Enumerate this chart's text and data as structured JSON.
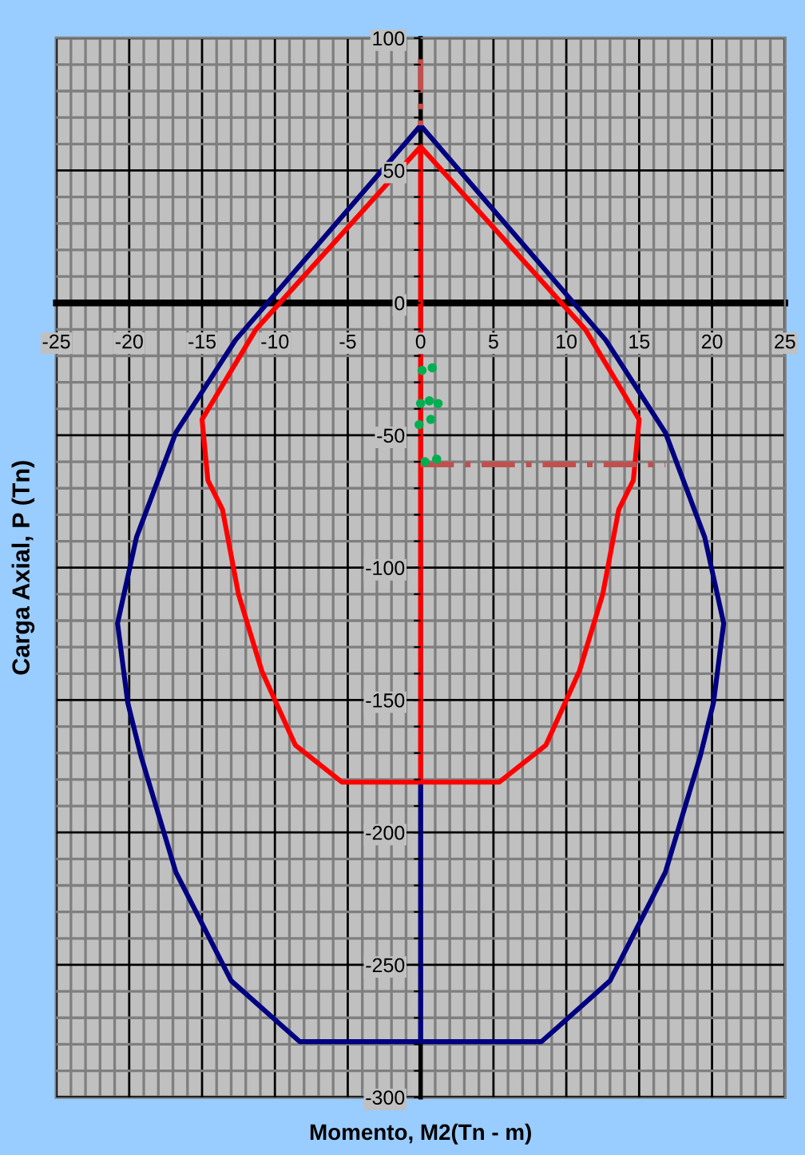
{
  "chart_data": {
    "type": "line",
    "xlabel": "Momento, M2(Tn - m)",
    "ylabel": "Carga Axial, P (Tn)",
    "xlim": [
      -25,
      25
    ],
    "ylim": [
      -300,
      100
    ],
    "xticks": [
      -25,
      {
        "value": -24,
        "label": null
      },
      {
        "value": -23,
        "label": null
      },
      {
        "value": -22,
        "label": null
      },
      {
        "value": -21,
        "label": null
      },
      -20,
      {
        "value": -19,
        "label": null
      },
      {
        "value": -18,
        "label": null
      },
      {
        "value": -17,
        "label": null
      },
      {
        "value": -16,
        "label": null
      },
      -15,
      {
        "value": -14,
        "label": null
      },
      {
        "value": -13,
        "label": null
      },
      {
        "value": -12,
        "label": null
      },
      {
        "value": -11,
        "label": null
      },
      -10,
      {
        "value": -9,
        "label": null
      },
      {
        "value": -8,
        "label": null
      },
      {
        "value": -7,
        "label": null
      },
      {
        "value": -6,
        "label": null
      },
      -5,
      {
        "value": -4,
        "label": null
      },
      {
        "value": -3,
        "label": null
      },
      {
        "value": -2,
        "label": null
      },
      {
        "value": -1,
        "label": null
      },
      0,
      {
        "value": 1,
        "label": null
      },
      {
        "value": 2,
        "label": null
      },
      {
        "value": 3,
        "label": null
      },
      {
        "value": 4,
        "label": null
      },
      5,
      {
        "value": 6,
        "label": null
      },
      {
        "value": 7,
        "label": null
      },
      {
        "value": 8,
        "label": null
      },
      {
        "value": 9,
        "label": null
      },
      10,
      {
        "value": 11,
        "label": null
      },
      {
        "value": 12,
        "label": null
      },
      {
        "value": 13,
        "label": null
      },
      {
        "value": 14,
        "label": null
      },
      15,
      {
        "value": 16,
        "label": null
      },
      {
        "value": 17,
        "label": null
      },
      {
        "value": 18,
        "label": null
      },
      {
        "value": 19,
        "label": null
      },
      20,
      {
        "value": 21,
        "label": null
      },
      {
        "value": 22,
        "label": null
      },
      {
        "value": 23,
        "label": null
      },
      {
        "value": 24,
        "label": null
      },
      25
    ],
    "yticks": [
      -300,
      {
        "value": -290,
        "label": null
      },
      {
        "value": -280,
        "label": null
      },
      {
        "value": -270,
        "label": null
      },
      {
        "value": -260,
        "label": null
      },
      -250,
      {
        "value": -240,
        "label": null
      },
      {
        "value": -230,
        "label": null
      },
      {
        "value": -220,
        "label": null
      },
      {
        "value": -210,
        "label": null
      },
      -200,
      {
        "value": -190,
        "label": null
      },
      {
        "value": -180,
        "label": null
      },
      {
        "value": -170,
        "label": null
      },
      {
        "value": -160,
        "label": null
      },
      -150,
      {
        "value": -140,
        "label": null
      },
      {
        "value": -130,
        "label": null
      },
      {
        "value": -120,
        "label": null
      },
      {
        "value": -110,
        "label": null
      },
      -100,
      {
        "value": -90,
        "label": null
      },
      {
        "value": -80,
        "label": null
      },
      {
        "value": -70,
        "label": null
      },
      {
        "value": -60,
        "label": null
      },
      -50,
      {
        "value": -40,
        "label": null
      },
      {
        "value": -30,
        "label": null
      },
      {
        "value": -20,
        "label": null
      },
      {
        "value": -10,
        "label": null
      },
      0,
      {
        "value": 10,
        "label": null
      },
      {
        "value": 20,
        "label": null
      },
      {
        "value": 30,
        "label": null
      },
      {
        "value": 40,
        "label": null
      },
      50,
      {
        "value": 60,
        "label": null
      },
      {
        "value": 70,
        "label": null
      },
      {
        "value": 80,
        "label": null
      },
      {
        "value": 90,
        "label": null
      },
      100
    ],
    "grid": true,
    "marker": "none",
    "line_style": "solid",
    "series": [
      {
        "color": "#000080",
        "x": [
          0,
          0,
          -8.3,
          -13.0,
          -16.8,
          -19.2,
          -20.1,
          -20.8,
          -19.5,
          -16.8,
          -12.7,
          0,
          12.7,
          16.8,
          19.5,
          20.8,
          20.1,
          19.2,
          16.8,
          13.0,
          8.3,
          0
        ],
        "values": [
          -181,
          -279,
          -279,
          -256,
          -215,
          -171,
          -151,
          -121,
          -88.5,
          -49,
          -14,
          67,
          -14,
          -49,
          -88.5,
          -121,
          -151,
          -171,
          -215,
          -256,
          -279,
          -279
        ]
      },
      {
        "color": "#ff0000",
        "x": [
          0,
          0,
          -11.3,
          -15.0,
          -14.6,
          -13.6,
          -12.5,
          -10.9,
          -10.0,
          -8.6,
          -5.4,
          5.4,
          8.6,
          10.0,
          10.9,
          12.5,
          13.6,
          14.6,
          15.0,
          11.3,
          0
        ],
        "values": [
          -181,
          59,
          -10,
          -44,
          -67,
          -78,
          -110,
          -139,
          -150,
          -167,
          -181,
          -181,
          -167,
          -150,
          -139,
          -110,
          -78,
          -67,
          -44,
          -10,
          59
        ]
      },
      {
        "color": "#c0504d",
        "line_style": "dashed",
        "x": [
          0,
          16.8
        ],
        "values": [
          -61,
          -61
        ]
      },
      {
        "color": "#c0504d",
        "line_style": "dashed",
        "x": [
          0,
          0
        ],
        "values": [
          92,
          67
        ]
      },
      {
        "type": "scatter",
        "color": "#00b050",
        "marker": "circle",
        "x": [
          0.1,
          0.8,
          0.0,
          0.6,
          1.2,
          -0.1,
          0.7,
          0.3,
          1.1
        ],
        "values": [
          -25.5,
          -24.5,
          -38,
          -37,
          -38,
          -46,
          -44,
          -60,
          -59
        ]
      }
    ]
  }
}
